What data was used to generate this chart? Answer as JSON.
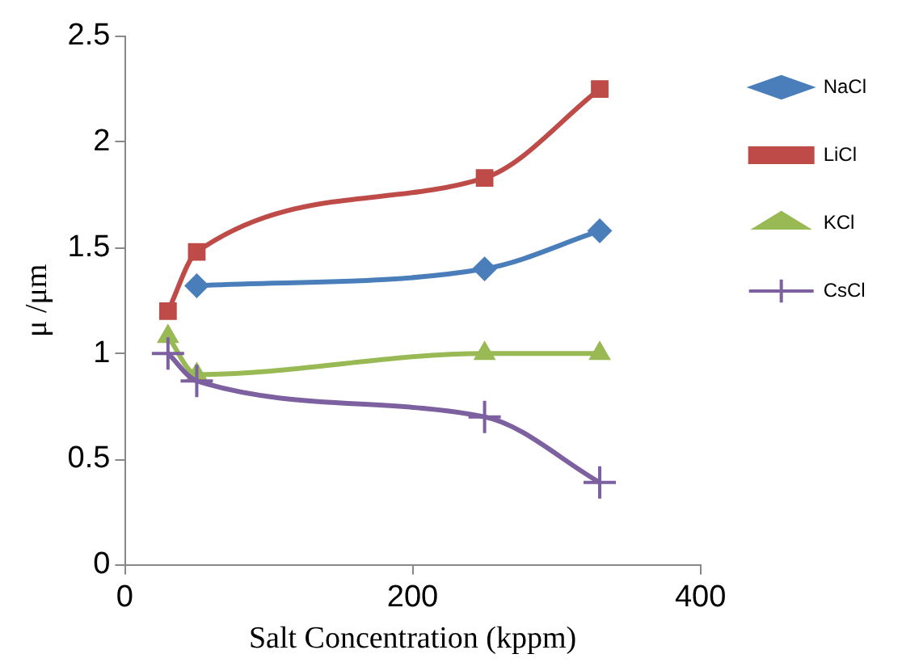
{
  "chart_data": {
    "type": "line",
    "xlabel": "Salt Concentration (kppm)",
    "ylabel": "μ /μm",
    "xlim": [
      0,
      400
    ],
    "xticks": [
      0,
      200,
      400
    ],
    "ylim": [
      0,
      2.5
    ],
    "yticks": [
      0,
      0.5,
      1,
      1.5,
      2,
      2.5
    ],
    "grid": false,
    "legend": "right",
    "line_style": "solid",
    "series": [
      {
        "name": "NaCl",
        "color": "#4a7ebb",
        "marker": "diamond",
        "x": [
          50,
          250,
          330
        ],
        "values": [
          1.32,
          1.4,
          1.58
        ]
      },
      {
        "name": "LiCl",
        "color": "#be4b48",
        "marker": "square",
        "x": [
          30,
          50,
          250,
          330
        ],
        "values": [
          1.2,
          1.48,
          1.83,
          2.25
        ]
      },
      {
        "name": "KCl",
        "color": "#98b954",
        "marker": "triangle",
        "x": [
          30,
          50,
          250,
          330
        ],
        "values": [
          1.08,
          0.9,
          1.0,
          1.0
        ]
      },
      {
        "name": "CsCl",
        "color": "#7d60a0",
        "marker": "cross",
        "x": [
          30,
          50,
          250,
          330
        ],
        "values": [
          1.0,
          0.87,
          0.7,
          0.39
        ]
      }
    ]
  }
}
